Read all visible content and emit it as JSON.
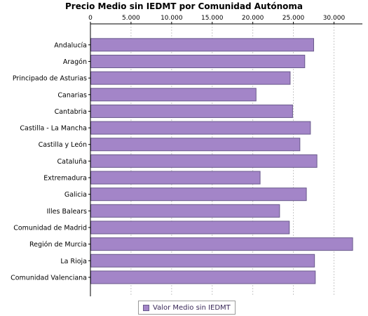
{
  "chart_data": {
    "type": "bar",
    "orientation": "horizontal",
    "title": "Precio Medio sin IEDMT por Comunidad Autónoma",
    "xlabel": "",
    "ylabel": "",
    "xlim": [
      0,
      33500
    ],
    "x_ticks": [
      0,
      5000,
      10000,
      15000,
      20000,
      25000,
      30000
    ],
    "x_tick_labels": [
      "0",
      "5.000",
      "10.000",
      "15.000",
      "20.000",
      "25.000",
      "30.000"
    ],
    "axis_position": "top",
    "grid": true,
    "legend_position": "bottom",
    "categories": [
      "Andalucía",
      "Aragón",
      "Principado de Asturias",
      "Canarias",
      "Cantabria",
      "Castilla - La Mancha",
      "Castilla y León",
      "Cataluña",
      "Extremadura",
      "Galicia",
      "Illes Balears",
      "Comunidad de Madrid",
      "Región de Murcia",
      "La Rioja",
      "Comunidad Valenciana"
    ],
    "series": [
      {
        "name": "Valor Medio sin IEDMT",
        "values": [
          27500,
          26400,
          24600,
          20400,
          24900,
          27100,
          25800,
          27900,
          20900,
          26600,
          23300,
          24500,
          32300,
          27600,
          27700
        ]
      }
    ]
  },
  "colors": {
    "bar_fill": "#a385c8",
    "bar_stroke": "#6a5a8c",
    "grid": "#c8c8c8",
    "axis": "#000000"
  }
}
